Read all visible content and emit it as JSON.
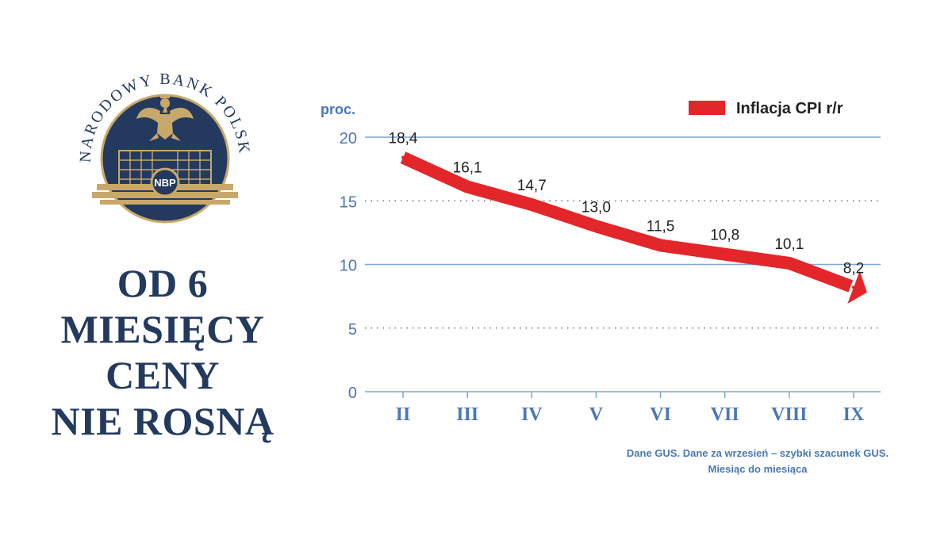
{
  "logo": {
    "ring_text": "NARODOWY BANK POLSKI",
    "badge_text": "NBP",
    "eagle_icon": "white-eagle-emblem",
    "colors": {
      "navy": "#233a5e",
      "gold": "#c8a86a"
    }
  },
  "headline": {
    "lines": [
      "OD 6",
      "MIESIĘCY",
      "CENY",
      "NIE ROSNĄ"
    ]
  },
  "chart_data": {
    "type": "line",
    "categories": [
      "II",
      "III",
      "IV",
      "V",
      "VI",
      "VII",
      "VIII",
      "IX"
    ],
    "series": [
      {
        "name": "Inflacja CPI r/r",
        "values": [
          18.4,
          16.1,
          14.7,
          13.0,
          11.5,
          10.8,
          10.1,
          8.2
        ],
        "labels": [
          "18,4",
          "16,1",
          "14,7",
          "13,0",
          "11,5",
          "10,8",
          "10,1",
          "8,2"
        ],
        "color": "#e3262a"
      }
    ],
    "ylabel": "proc.",
    "ylim": [
      0,
      20
    ],
    "yticks": [
      "0",
      "5",
      "10",
      "15",
      "20"
    ],
    "grid": true,
    "legend_position": "top-right",
    "colors": {
      "axis": "#4a78b4",
      "text": "#222222"
    }
  },
  "source": {
    "line1": "Dane GUS. Dane za wrzesień – szybki szacunek GUS.",
    "line2": "Miesiąc do miesiąca"
  }
}
